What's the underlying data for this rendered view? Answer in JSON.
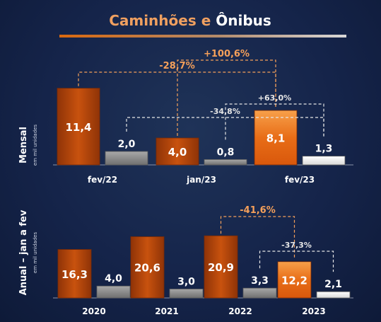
{
  "title_part1": "Caminhões e ",
  "title_part2": "Ônibus",
  "colors": {
    "background": "#15244a",
    "accent_orange": "#e0731b",
    "orange_dark": "#b7470a",
    "gray": "#8c8c8c",
    "white": "#f2f2f2",
    "axis_text": "#ffffff",
    "annotation_orange": "#f5a05a",
    "annotation_white": "#e6e6e6"
  },
  "chart_data": [
    {
      "type": "bar",
      "ylabel": "Mensal",
      "ylabel_sub": "em mil unidades",
      "categories": [
        "fev/22",
        "jan/23",
        "fev/23"
      ],
      "series": [
        {
          "values": [
            11.4,
            4.0,
            8.1
          ],
          "labels": [
            "11,4",
            "4,0",
            "8,1"
          ]
        },
        {
          "values": [
            2.0,
            0.8,
            1.3
          ],
          "labels": [
            "2,0",
            "0,8",
            "1,3"
          ]
        }
      ],
      "annotations": [
        {
          "text": "-28,7%",
          "from": [
            0,
            0
          ],
          "to": [
            2,
            0
          ],
          "color": "orange"
        },
        {
          "text": "+100,6%",
          "from": [
            1,
            0
          ],
          "to": [
            2,
            0
          ],
          "color": "orange"
        },
        {
          "text": "-34,8%",
          "from": [
            0,
            1
          ],
          "to": [
            2,
            1
          ],
          "color": "white"
        },
        {
          "text": "+63,0%",
          "from": [
            1,
            1
          ],
          "to": [
            2,
            1
          ],
          "color": "white"
        }
      ]
    },
    {
      "type": "bar",
      "ylabel": "Anual – jan a fev",
      "ylabel_sub": "em mil unidades",
      "categories": [
        "2020",
        "2021",
        "2022",
        "2023"
      ],
      "series": [
        {
          "values": [
            16.3,
            20.6,
            20.9,
            12.2
          ],
          "labels": [
            "16,3",
            "20,6",
            "20,9",
            "12,2"
          ]
        },
        {
          "values": [
            4.0,
            3.0,
            3.3,
            2.1
          ],
          "labels": [
            "4,0",
            "3,0",
            "3,3",
            "2,1"
          ]
        }
      ],
      "annotations": [
        {
          "text": "-41,6%",
          "from": [
            2,
            0
          ],
          "to": [
            3,
            0
          ],
          "color": "orange"
        },
        {
          "text": "-37,3%",
          "from": [
            2,
            1
          ],
          "to": [
            3,
            1
          ],
          "color": "white"
        }
      ]
    }
  ]
}
